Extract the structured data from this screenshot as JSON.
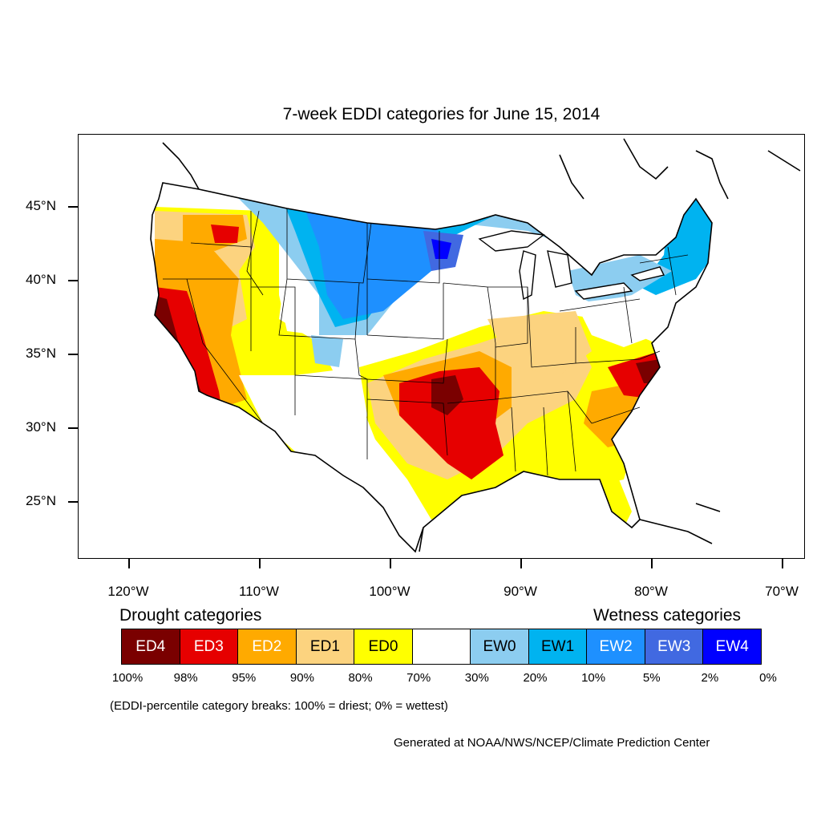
{
  "map": {
    "title": "7-week EDDI categories for June 15, 2014",
    "lat_labels": [
      {
        "label": "45°N",
        "lat": 45
      },
      {
        "label": "40°N",
        "lat": 40
      },
      {
        "label": "35°N",
        "lat": 35
      },
      {
        "label": "30°N",
        "lat": 30
      },
      {
        "label": "25°N",
        "lat": 25
      }
    ],
    "lon_labels": [
      {
        "label": "120°W",
        "lon": -120
      },
      {
        "label": "110°W",
        "lon": -110
      },
      {
        "label": "100°W",
        "lon": -100
      },
      {
        "label": "90°W",
        "lon": -90
      },
      {
        "label": "80°W",
        "lon": -80
      },
      {
        "label": "70°W",
        "lon": -70
      }
    ]
  },
  "legend": {
    "drought_heading": "Drought categories",
    "wetness_heading": "Wetness categories",
    "categories": [
      {
        "label": "ED4",
        "color": "#7a0000",
        "text_color": "#ffffff"
      },
      {
        "label": "ED3",
        "color": "#e60000",
        "text_color": "#ffffff"
      },
      {
        "label": "ED2",
        "color": "#ffaa00",
        "text_color": "#ffffff"
      },
      {
        "label": "ED1",
        "color": "#fcd37f",
        "text_color": "#000000"
      },
      {
        "label": "ED0",
        "color": "#ffff00",
        "text_color": "#000000"
      },
      {
        "label": "",
        "color": "#ffffff",
        "text_color": "#000000"
      },
      {
        "label": "EW0",
        "color": "#8ccdf0",
        "text_color": "#000000"
      },
      {
        "label": "EW1",
        "color": "#00b3f0",
        "text_color": "#000000"
      },
      {
        "label": "EW2",
        "color": "#1e90ff",
        "text_color": "#ffffff"
      },
      {
        "label": "EW3",
        "color": "#4169e1",
        "text_color": "#ffffff"
      },
      {
        "label": "EW4",
        "color": "#0000ff",
        "text_color": "#ffffff"
      }
    ],
    "breaks": [
      "100%",
      "98%",
      "95%",
      "90%",
      "80%",
      "70%",
      "30%",
      "20%",
      "10%",
      "5%",
      "2%",
      "0%"
    ]
  },
  "note": "(EDDI-percentile category breaks: 100% = driest; 0% = wettest)",
  "credit": "Generated at NOAA/NWS/NCEP/Climate Prediction Center"
}
